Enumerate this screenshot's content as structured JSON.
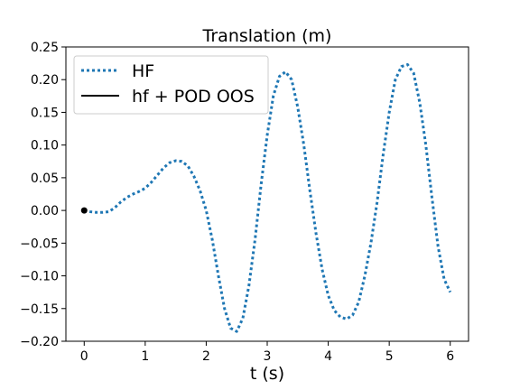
{
  "chart_data": {
    "type": "line",
    "title": "Translation (m)",
    "xlabel": "t (s)",
    "ylabel": "",
    "xlim": [
      -0.3,
      6.3
    ],
    "ylim": [
      -0.2,
      0.25
    ],
    "xticks": [
      0,
      1,
      2,
      3,
      4,
      5,
      6
    ],
    "yticks": [
      -0.2,
      -0.15,
      -0.1,
      -0.05,
      0.0,
      0.05,
      0.1,
      0.15,
      0.2,
      0.25
    ],
    "xtick_labels": [
      "0",
      "1",
      "2",
      "3",
      "4",
      "5",
      "6"
    ],
    "ytick_labels": [
      "−0.20",
      "−0.15",
      "−0.10",
      "−0.05",
      "0.00",
      "0.05",
      "0.10",
      "0.15",
      "0.20",
      "0.25"
    ],
    "grid": false,
    "legend_position": "top-left",
    "series": [
      {
        "name": "HF",
        "color": "#1f77b4",
        "style": "dotted",
        "x": [
          0.0,
          0.1,
          0.2,
          0.3,
          0.4,
          0.5,
          0.6,
          0.7,
          0.8,
          0.9,
          1.0,
          1.1,
          1.2,
          1.3,
          1.4,
          1.5,
          1.6,
          1.7,
          1.8,
          1.9,
          2.0,
          2.1,
          2.2,
          2.3,
          2.4,
          2.5,
          2.6,
          2.7,
          2.8,
          2.9,
          3.0,
          3.1,
          3.2,
          3.3,
          3.4,
          3.5,
          3.6,
          3.7,
          3.8,
          3.9,
          4.0,
          4.1,
          4.2,
          4.3,
          4.4,
          4.5,
          4.6,
          4.7,
          4.8,
          4.9,
          5.0,
          5.1,
          5.2,
          5.3,
          5.4,
          5.5,
          5.6,
          5.7,
          5.8,
          5.9,
          6.0
        ],
        "y": [
          0.0,
          -0.002,
          -0.003,
          -0.003,
          -0.002,
          0.004,
          0.013,
          0.02,
          0.025,
          0.029,
          0.034,
          0.043,
          0.054,
          0.065,
          0.073,
          0.076,
          0.075,
          0.068,
          0.052,
          0.03,
          0.0,
          -0.045,
          -0.1,
          -0.15,
          -0.18,
          -0.185,
          -0.165,
          -0.115,
          -0.045,
          0.04,
          0.115,
          0.175,
          0.205,
          0.212,
          0.2,
          0.158,
          0.1,
          0.03,
          -0.035,
          -0.09,
          -0.13,
          -0.153,
          -0.163,
          -0.166,
          -0.16,
          -0.14,
          -0.1,
          -0.05,
          0.012,
          0.085,
          0.15,
          0.2,
          0.22,
          0.223,
          0.21,
          0.165,
          0.1,
          0.02,
          -0.055,
          -0.105,
          -0.125
        ]
      },
      {
        "name": "hf + POD OOS",
        "color": "#000000",
        "style": "solid",
        "x": [
          0.0
        ],
        "y": [
          0.0
        ]
      }
    ]
  }
}
